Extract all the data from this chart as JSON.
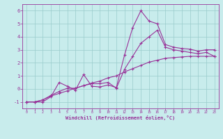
{
  "xlabel": "Windchill (Refroidissement éolien,°C)",
  "background_color": "#c8ecec",
  "line_color": "#993399",
  "grid_color": "#99cccc",
  "x_values": [
    0,
    1,
    2,
    3,
    4,
    5,
    6,
    7,
    8,
    9,
    10,
    11,
    12,
    13,
    14,
    15,
    16,
    17,
    18,
    19,
    20,
    21,
    22,
    23
  ],
  "series1": [
    -1.0,
    -1.0,
    -1.0,
    -0.6,
    0.5,
    0.2,
    -0.1,
    1.1,
    0.2,
    0.15,
    0.3,
    0.1,
    2.6,
    4.7,
    6.0,
    5.2,
    5.0,
    3.4,
    3.2,
    3.1,
    3.05,
    2.9,
    3.0,
    3.0
  ],
  "series2": [
    -1.0,
    -1.0,
    -0.85,
    -0.55,
    -0.35,
    -0.15,
    0.05,
    0.25,
    0.45,
    0.6,
    0.85,
    1.0,
    1.3,
    1.55,
    1.8,
    2.05,
    2.2,
    2.35,
    2.4,
    2.45,
    2.5,
    2.5,
    2.5,
    2.5
  ],
  "series3": [
    -1.0,
    -1.0,
    -0.85,
    -0.5,
    -0.2,
    0.05,
    0.05,
    0.25,
    0.4,
    0.4,
    0.5,
    0.05,
    1.5,
    2.5,
    3.5,
    4.0,
    4.5,
    3.2,
    3.0,
    2.9,
    2.8,
    2.7,
    2.8,
    2.5
  ],
  "ylim": [
    -1.5,
    6.5
  ],
  "xlim": [
    -0.5,
    23.5
  ],
  "yticks": [
    -1,
    0,
    1,
    2,
    3,
    4,
    5,
    6
  ],
  "xticks": [
    0,
    1,
    2,
    3,
    4,
    5,
    6,
    7,
    8,
    9,
    10,
    11,
    12,
    13,
    14,
    15,
    16,
    17,
    18,
    19,
    20,
    21,
    22,
    23
  ]
}
